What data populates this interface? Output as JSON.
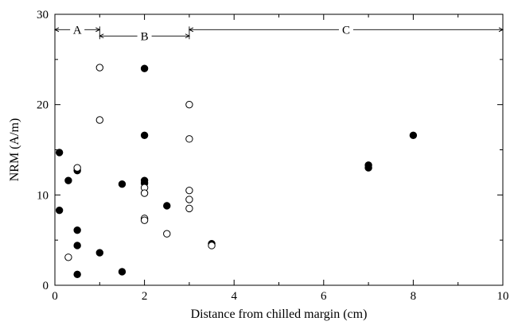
{
  "chart_data": {
    "type": "scatter",
    "title": "",
    "xlabel": "Distance from chilled margin (cm)",
    "ylabel": "NRM (A/m)",
    "xlim": [
      0,
      10
    ],
    "ylim": [
      0,
      30
    ],
    "xticks": [
      0,
      2,
      4,
      6,
      8,
      10
    ],
    "yticks": [
      0,
      10,
      20,
      30
    ],
    "grid": false,
    "legend": "none",
    "series": [
      {
        "marker": "filled-circle",
        "color": "#000000",
        "points": [
          [
            0.1,
            14.7
          ],
          [
            0.1,
            8.3
          ],
          [
            0.3,
            11.6
          ],
          [
            0.5,
            12.7
          ],
          [
            0.5,
            6.1
          ],
          [
            0.5,
            4.4
          ],
          [
            0.5,
            1.2
          ],
          [
            1.0,
            3.6
          ],
          [
            1.5,
            11.2
          ],
          [
            1.5,
            1.5
          ],
          [
            2.0,
            24.0
          ],
          [
            2.0,
            16.6
          ],
          [
            2.0,
            11.6
          ],
          [
            2.0,
            11.3
          ],
          [
            2.5,
            8.8
          ],
          [
            3.5,
            4.6
          ],
          [
            7.0,
            13.3
          ],
          [
            7.0,
            13.0
          ],
          [
            8.0,
            16.6
          ]
        ]
      },
      {
        "marker": "open-circle",
        "color": "#000000",
        "points": [
          [
            0.3,
            3.1
          ],
          [
            0.5,
            13.0
          ],
          [
            1.0,
            24.1
          ],
          [
            1.0,
            18.3
          ],
          [
            2.0,
            10.8
          ],
          [
            2.0,
            10.2
          ],
          [
            2.0,
            7.4
          ],
          [
            2.0,
            7.2
          ],
          [
            2.5,
            5.7
          ],
          [
            3.0,
            20.0
          ],
          [
            3.0,
            16.2
          ],
          [
            3.0,
            10.5
          ],
          [
            3.0,
            9.5
          ],
          [
            3.0,
            8.5
          ],
          [
            3.5,
            4.4
          ]
        ]
      }
    ],
    "zones": [
      {
        "label": "A",
        "x_start": 0,
        "x_end": 1,
        "y": 28.3
      },
      {
        "label": "B",
        "x_start": 1,
        "x_end": 3,
        "y": 27.6
      },
      {
        "label": "C",
        "x_start": 3,
        "x_end": 10,
        "y": 28.3
      }
    ]
  }
}
